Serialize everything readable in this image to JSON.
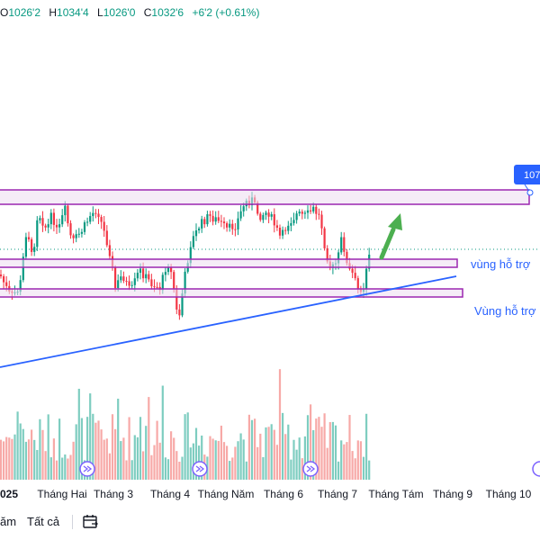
{
  "ohlc": {
    "o_key": "O",
    "o_val": "1026'2",
    "h_key": "H",
    "h_val": "1034'4",
    "l_key": "L",
    "l_val": "1026'0",
    "c_key": "C",
    "c_val": "1032'6",
    "change": "+6'2 (+0.61%)"
  },
  "price_tag": "107",
  "annotations": {
    "support_small": "vùng hỗ trợ",
    "support_large": "Vùng hỗ trợ"
  },
  "bottom": {
    "range_partial": "ăm",
    "all_label": "Tất cả"
  },
  "colors": {
    "up": "#089981",
    "down": "#f23645",
    "vol_up": "#7ecdc0",
    "vol_down": "#f7a9a7",
    "zone_fill": "#ecdcf1",
    "zone_stroke": "#9c27b0",
    "trend": "#2962ff",
    "arrow": "#4caf50"
  },
  "chart_data": {
    "type": "candlestick",
    "x_labels": [
      "025",
      "Tháng Hai",
      "Tháng 3",
      "Tháng 4",
      "Tháng Năm",
      "Tháng 6",
      "Tháng 7",
      "Tháng Tám",
      "Tháng 9",
      "Tháng 10"
    ],
    "last": {
      "open": "1026'2",
      "high": "1034'4",
      "low": "1026'0",
      "close": "1032'6"
    },
    "zones": [
      "resistance",
      "vùng hỗ trợ",
      "Vùng hỗ trợ"
    ],
    "volume_shown": true
  }
}
